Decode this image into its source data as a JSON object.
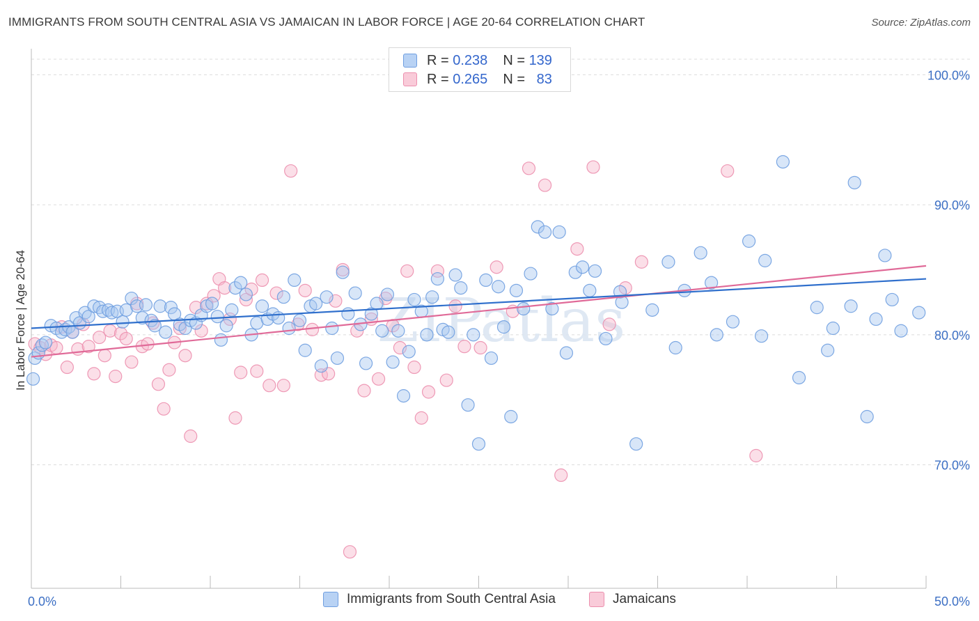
{
  "title": "IMMIGRANTS FROM SOUTH CENTRAL ASIA VS JAMAICAN IN LABOR FORCE | AGE 20-64 CORRELATION CHART",
  "source": "Source: ZipAtlas.com",
  "watermark": "ZIPatlas",
  "colors": {
    "blue_fill": "#a8c8f0",
    "blue_stroke": "#6f9ee0",
    "blue_line": "#2f6fcc",
    "pink_fill": "#f6b8cc",
    "pink_stroke": "#ec8fae",
    "pink_line": "#e06a98",
    "tick_label": "#3c6fc4",
    "grid": "#dcdcdc"
  },
  "legend": {
    "rows": [
      {
        "r_label": "R =",
        "r_value": "0.238",
        "n_label": "N =",
        "n_value": "139"
      },
      {
        "r_label": "R =",
        "r_value": "0.265",
        "n_label": "N =",
        "n_value": "83"
      }
    ]
  },
  "chart_data": {
    "type": "scatter",
    "title": "IMMIGRANTS FROM SOUTH CENTRAL ASIA VS JAMAICAN IN LABOR FORCE | AGE 20-64 CORRELATION CHART",
    "xlabel": "",
    "ylabel": "In Labor Force | Age 20-64",
    "xlim": [
      0,
      50
    ],
    "ylim": [
      60.5,
      102
    ],
    "x_tick_labels": [
      "0.0%",
      "50.0%"
    ],
    "y_ticks": [
      70,
      80,
      90,
      100
    ],
    "y_tick_labels": [
      "70.0%",
      "80.0%",
      "90.0%",
      "100.0%"
    ],
    "grid": true,
    "legend_position": "top-center",
    "series": [
      {
        "name": "Immigrants from South Central Asia",
        "r": 0.238,
        "n": 139,
        "trend": {
          "x": [
            0,
            50
          ],
          "y": [
            80.5,
            84.3
          ]
        },
        "points": [
          [
            0.1,
            76.6
          ],
          [
            0.2,
            78.2
          ],
          [
            0.4,
            78.6
          ],
          [
            0.6,
            79.2
          ],
          [
            0.8,
            79.4
          ],
          [
            1.1,
            80.7
          ],
          [
            1.4,
            80.5
          ],
          [
            1.7,
            80.2
          ],
          [
            1.9,
            80.4
          ],
          [
            2.1,
            80.6
          ],
          [
            2.3,
            80.2
          ],
          [
            2.5,
            81.3
          ],
          [
            2.7,
            80.9
          ],
          [
            3.0,
            81.7
          ],
          [
            3.2,
            81.4
          ],
          [
            3.5,
            82.2
          ],
          [
            3.8,
            82.1
          ],
          [
            4.0,
            81.8
          ],
          [
            4.3,
            81.9
          ],
          [
            4.5,
            81.7
          ],
          [
            4.8,
            81.8
          ],
          [
            5.1,
            81.0
          ],
          [
            5.3,
            81.9
          ],
          [
            5.6,
            82.8
          ],
          [
            5.9,
            82.2
          ],
          [
            6.2,
            81.3
          ],
          [
            6.4,
            82.3
          ],
          [
            6.7,
            81.1
          ],
          [
            6.9,
            80.7
          ],
          [
            7.2,
            82.2
          ],
          [
            7.5,
            80.2
          ],
          [
            7.8,
            82.1
          ],
          [
            8.0,
            81.6
          ],
          [
            8.3,
            80.8
          ],
          [
            8.6,
            80.5
          ],
          [
            8.9,
            81.1
          ],
          [
            9.2,
            80.9
          ],
          [
            9.5,
            81.5
          ],
          [
            9.8,
            82.2
          ],
          [
            10.1,
            82.4
          ],
          [
            10.4,
            81.4
          ],
          [
            10.6,
            79.6
          ],
          [
            10.9,
            80.7
          ],
          [
            11.2,
            81.9
          ],
          [
            11.4,
            83.6
          ],
          [
            11.7,
            84.0
          ],
          [
            12.0,
            83.1
          ],
          [
            12.3,
            80.0
          ],
          [
            12.6,
            80.9
          ],
          [
            12.9,
            82.2
          ],
          [
            13.2,
            81.2
          ],
          [
            13.5,
            81.6
          ],
          [
            13.8,
            81.3
          ],
          [
            14.1,
            82.9
          ],
          [
            14.4,
            80.5
          ],
          [
            14.7,
            84.2
          ],
          [
            15.0,
            81.1
          ],
          [
            15.3,
            78.8
          ],
          [
            15.6,
            82.2
          ],
          [
            15.9,
            82.4
          ],
          [
            16.2,
            77.6
          ],
          [
            16.5,
            82.9
          ],
          [
            16.8,
            80.5
          ],
          [
            17.1,
            78.2
          ],
          [
            17.4,
            84.8
          ],
          [
            17.7,
            81.6
          ],
          [
            18.1,
            83.2
          ],
          [
            18.4,
            80.8
          ],
          [
            18.7,
            77.8
          ],
          [
            19.0,
            81.6
          ],
          [
            19.3,
            82.4
          ],
          [
            19.6,
            80.3
          ],
          [
            19.9,
            83.1
          ],
          [
            20.2,
            77.9
          ],
          [
            20.5,
            80.3
          ],
          [
            20.8,
            75.3
          ],
          [
            21.1,
            78.7
          ],
          [
            21.4,
            82.7
          ],
          [
            21.8,
            81.8
          ],
          [
            22.1,
            80.0
          ],
          [
            22.4,
            82.9
          ],
          [
            22.7,
            84.3
          ],
          [
            23.0,
            80.4
          ],
          [
            23.3,
            80.2
          ],
          [
            23.7,
            84.6
          ],
          [
            24.0,
            83.6
          ],
          [
            24.4,
            74.6
          ],
          [
            24.7,
            80.0
          ],
          [
            25.0,
            71.6
          ],
          [
            25.4,
            84.2
          ],
          [
            25.7,
            78.2
          ],
          [
            26.1,
            83.7
          ],
          [
            26.4,
            80.6
          ],
          [
            26.8,
            73.7
          ],
          [
            27.1,
            83.4
          ],
          [
            27.5,
            82.0
          ],
          [
            27.9,
            84.7
          ],
          [
            28.3,
            88.3
          ],
          [
            28.7,
            87.9
          ],
          [
            29.1,
            82.0
          ],
          [
            29.5,
            87.9
          ],
          [
            29.9,
            78.6
          ],
          [
            30.4,
            84.8
          ],
          [
            30.8,
            85.2
          ],
          [
            31.2,
            83.4
          ],
          [
            32.1,
            79.7
          ],
          [
            32.9,
            83.3
          ],
          [
            33.8,
            71.6
          ],
          [
            34.7,
            81.9
          ],
          [
            35.6,
            85.6
          ],
          [
            36.5,
            83.4
          ],
          [
            37.4,
            86.3
          ],
          [
            38.3,
            80.0
          ],
          [
            39.2,
            81.0
          ],
          [
            40.1,
            87.2
          ],
          [
            41.0,
            85.7
          ],
          [
            42.0,
            93.3
          ],
          [
            42.9,
            76.7
          ],
          [
            43.9,
            82.1
          ],
          [
            44.8,
            80.5
          ],
          [
            45.8,
            82.2
          ],
          [
            46.7,
            73.7
          ],
          [
            47.7,
            86.1
          ],
          [
            48.6,
            80.3
          ],
          [
            49.6,
            81.7
          ],
          [
            40.8,
            79.9
          ],
          [
            38.0,
            84.0
          ],
          [
            31.5,
            84.9
          ],
          [
            33.0,
            82.5
          ],
          [
            36.0,
            79.0
          ],
          [
            44.5,
            78.8
          ],
          [
            46.0,
            91.7
          ],
          [
            47.2,
            81.2
          ],
          [
            48.1,
            82.7
          ]
        ]
      },
      {
        "name": "Jamaicans",
        "r": 0.265,
        "n": 83,
        "trend": {
          "x": [
            0,
            50
          ],
          "y": [
            78.3,
            85.3
          ]
        },
        "points": [
          [
            0.2,
            79.3
          ],
          [
            0.5,
            79.0
          ],
          [
            0.8,
            78.5
          ],
          [
            1.1,
            79.2
          ],
          [
            1.4,
            79.0
          ],
          [
            1.7,
            80.6
          ],
          [
            2.0,
            77.5
          ],
          [
            2.3,
            80.2
          ],
          [
            2.6,
            78.9
          ],
          [
            2.9,
            80.8
          ],
          [
            3.2,
            79.1
          ],
          [
            3.5,
            77.0
          ],
          [
            3.8,
            79.8
          ],
          [
            4.1,
            78.4
          ],
          [
            4.4,
            80.3
          ],
          [
            4.7,
            76.8
          ],
          [
            5.0,
            80.1
          ],
          [
            5.3,
            79.7
          ],
          [
            5.6,
            77.9
          ],
          [
            5.9,
            82.4
          ],
          [
            6.2,
            79.1
          ],
          [
            6.5,
            79.3
          ],
          [
            6.8,
            80.9
          ],
          [
            7.1,
            76.2
          ],
          [
            7.4,
            74.3
          ],
          [
            7.7,
            77.3
          ],
          [
            8.0,
            79.4
          ],
          [
            8.3,
            80.5
          ],
          [
            8.6,
            78.4
          ],
          [
            8.9,
            72.2
          ],
          [
            9.2,
            82.1
          ],
          [
            9.5,
            80.3
          ],
          [
            9.8,
            82.4
          ],
          [
            10.2,
            83.0
          ],
          [
            10.5,
            84.3
          ],
          [
            10.8,
            83.6
          ],
          [
            11.1,
            81.2
          ],
          [
            11.4,
            73.6
          ],
          [
            11.7,
            77.1
          ],
          [
            12.0,
            82.7
          ],
          [
            12.3,
            83.5
          ],
          [
            12.6,
            77.2
          ],
          [
            12.9,
            84.2
          ],
          [
            13.3,
            76.1
          ],
          [
            13.7,
            83.2
          ],
          [
            14.1,
            76.1
          ],
          [
            14.5,
            92.6
          ],
          [
            14.9,
            80.8
          ],
          [
            15.3,
            83.4
          ],
          [
            15.7,
            80.4
          ],
          [
            16.2,
            76.9
          ],
          [
            16.6,
            77.0
          ],
          [
            17.0,
            82.6
          ],
          [
            17.4,
            85.0
          ],
          [
            17.8,
            63.3
          ],
          [
            18.2,
            80.3
          ],
          [
            18.6,
            75.7
          ],
          [
            19.0,
            81.2
          ],
          [
            19.4,
            76.6
          ],
          [
            19.8,
            82.8
          ],
          [
            20.2,
            80.7
          ],
          [
            20.6,
            79.0
          ],
          [
            21.0,
            84.9
          ],
          [
            21.4,
            77.5
          ],
          [
            21.8,
            73.6
          ],
          [
            22.2,
            75.6
          ],
          [
            22.7,
            84.9
          ],
          [
            23.2,
            76.5
          ],
          [
            23.7,
            82.2
          ],
          [
            24.2,
            79.1
          ],
          [
            25.1,
            79.0
          ],
          [
            26.0,
            85.2
          ],
          [
            26.9,
            81.8
          ],
          [
            27.8,
            92.8
          ],
          [
            28.7,
            91.5
          ],
          [
            29.6,
            69.2
          ],
          [
            30.5,
            86.6
          ],
          [
            31.4,
            92.9
          ],
          [
            32.3,
            80.8
          ],
          [
            33.2,
            83.6
          ],
          [
            34.1,
            85.6
          ],
          [
            38.9,
            92.6
          ],
          [
            40.5,
            70.7
          ]
        ]
      }
    ]
  }
}
